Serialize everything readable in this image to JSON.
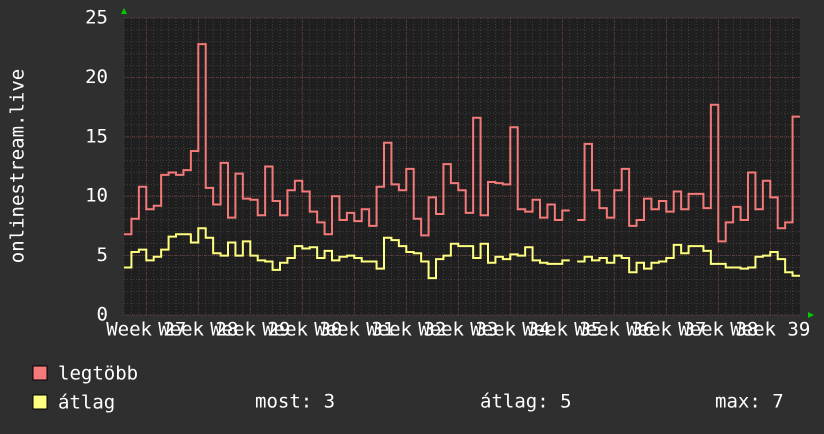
{
  "chart_data": {
    "type": "line",
    "y_label": "onlinestream.live",
    "xlim": [
      0,
      91
    ],
    "ylim": [
      0,
      25
    ],
    "yticks": [
      0,
      5,
      10,
      15,
      20,
      25
    ],
    "xticks": [
      {
        "value": 3,
        "label": "Week 27"
      },
      {
        "value": 10,
        "label": "Week 28"
      },
      {
        "value": 17,
        "label": "Week 29"
      },
      {
        "value": 24,
        "label": "Week 30"
      },
      {
        "value": 31,
        "label": "Week 31"
      },
      {
        "value": 38,
        "label": "Week 32"
      },
      {
        "value": 45,
        "label": "Week 33"
      },
      {
        "value": 52,
        "label": "Week 34"
      },
      {
        "value": 59,
        "label": "Week 35"
      },
      {
        "value": 66,
        "label": "Week 36"
      },
      {
        "value": 73,
        "label": "Week 37"
      },
      {
        "value": 80,
        "label": "Week 38"
      },
      {
        "value": 87,
        "label": "Week 39"
      }
    ],
    "grid": true,
    "x": [
      0,
      1,
      2,
      3,
      4,
      5,
      6,
      7,
      8,
      9,
      10,
      11,
      12,
      13,
      14,
      15,
      16,
      17,
      18,
      19,
      20,
      21,
      22,
      23,
      24,
      25,
      26,
      27,
      28,
      29,
      30,
      31,
      32,
      33,
      34,
      35,
      36,
      37,
      38,
      39,
      40,
      41,
      42,
      43,
      44,
      45,
      46,
      47,
      48,
      49,
      50,
      51,
      52,
      53,
      54,
      55,
      56,
      57,
      58,
      59,
      60,
      61,
      62,
      63,
      64,
      65,
      66,
      67,
      68,
      69,
      70,
      71,
      72,
      73,
      74,
      75,
      76,
      77,
      78,
      79,
      80,
      81,
      82,
      83,
      84,
      85,
      86,
      87,
      88,
      89,
      90
    ],
    "series": [
      {
        "name": "legtöbb",
        "color": "#f47a7a",
        "values": [
          6.8,
          8.1,
          10.8,
          8.9,
          9.2,
          11.8,
          12.0,
          11.8,
          12.2,
          13.8,
          22.8,
          10.7,
          9.3,
          12.8,
          8.2,
          11.9,
          9.8,
          9.7,
          8.4,
          12.5,
          9.6,
          8.4,
          10.5,
          11.3,
          10.4,
          8.7,
          7.8,
          6.8,
          10.0,
          8.0,
          8.6,
          7.9,
          8.9,
          7.5,
          10.8,
          14.5,
          11.0,
          10.5,
          12.3,
          8.1,
          6.7,
          9.9,
          8.5,
          12.7,
          11.1,
          10.5,
          8.6,
          16.6,
          8.4,
          11.2,
          11.1,
          11.0,
          15.8,
          8.9,
          8.7,
          9.7,
          8.2,
          9.3,
          8.0,
          8.8,
          null,
          8.0,
          14.4,
          10.5,
          9.0,
          8.2,
          10.5,
          12.3,
          7.5,
          8.0,
          9.8,
          8.9,
          9.6,
          8.7,
          10.4,
          8.9,
          10.2,
          10.2,
          9.0,
          17.7,
          6.2,
          7.8,
          9.1,
          8.0,
          12.0,
          8.9,
          11.3,
          9.9,
          7.3,
          7.8,
          16.7
        ]
      },
      {
        "name": "átlag",
        "color": "#ffff80",
        "values": [
          4.0,
          5.3,
          5.5,
          4.6,
          4.9,
          5.5,
          6.6,
          6.8,
          6.8,
          6.1,
          7.3,
          6.5,
          5.2,
          5.0,
          6.1,
          5.0,
          6.2,
          5.0,
          4.6,
          4.5,
          3.8,
          4.4,
          4.8,
          5.8,
          5.6,
          5.7,
          4.8,
          5.4,
          4.6,
          4.9,
          5.0,
          4.8,
          4.5,
          4.5,
          3.9,
          6.5,
          6.3,
          5.8,
          5.3,
          5.2,
          4.5,
          3.1,
          4.7,
          5.0,
          6.0,
          5.8,
          5.8,
          4.8,
          6.0,
          4.4,
          4.9,
          4.7,
          5.1,
          5.0,
          5.7,
          4.6,
          4.4,
          4.3,
          4.3,
          4.6,
          null,
          4.5,
          4.9,
          4.6,
          4.8,
          4.4,
          5.0,
          4.8,
          3.6,
          4.4,
          3.9,
          4.4,
          4.5,
          4.8,
          5.9,
          5.2,
          5.8,
          5.8,
          5.4,
          4.3,
          4.3,
          4.0,
          4.0,
          3.9,
          4.0,
          4.9,
          5.0,
          5.3,
          4.7,
          3.6,
          3.3
        ]
      }
    ],
    "stats": [
      "most: 3",
      "átlag: 5",
      "max: 7"
    ]
  }
}
